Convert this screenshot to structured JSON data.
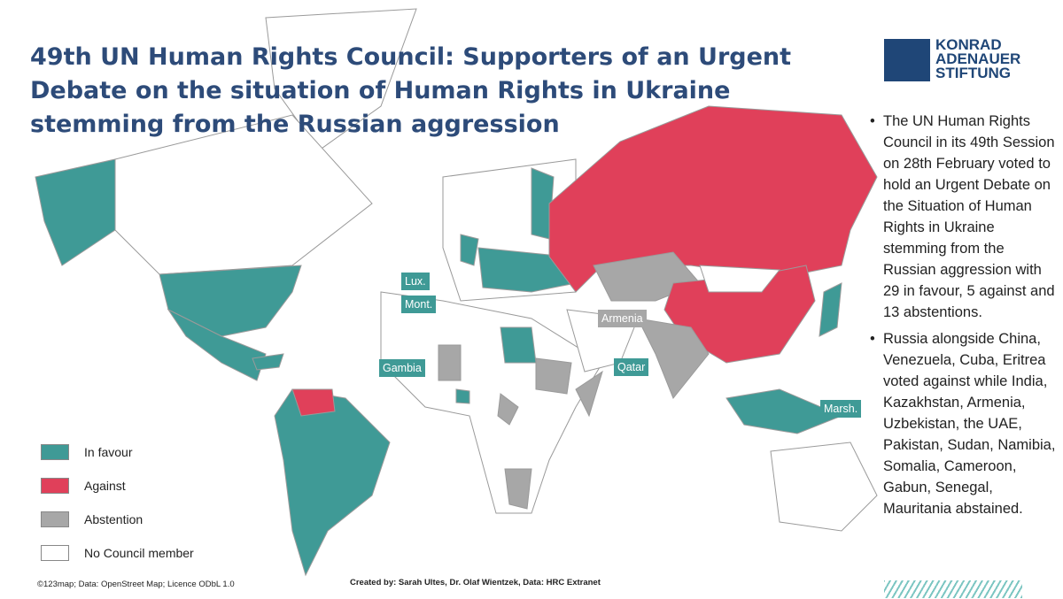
{
  "header": {
    "title": "49th UN Human Rights Council: Supporters of an Urgent Debate on the situation of Human Rights in Ukraine stemming from the Russian aggression",
    "logo": [
      "KONRAD",
      "ADENAUER",
      "STIFTUNG"
    ]
  },
  "bullets": [
    "The UN Human Rights Council in its 49th Session on 28th February voted to hold an Urgent Debate on the Situation of Human Rights in Ukraine stemming from the Russian aggression with 29 in favour, 5 against and 13 abstentions.",
    "Russia alongside China, Venezuela, Cuba, Eritrea voted against while India, Kazakhstan, Armenia, Uzbekistan, the UAE, Pakistan, Sudan, Namibia, Somalia, Cameroon, Gabun, Senegal, Mauritania abstained."
  ],
  "legend": [
    {
      "label": "In favour",
      "color": "#3f9a96"
    },
    {
      "label": "Against",
      "color": "#e0405a"
    },
    {
      "label": "Abstention",
      "color": "#a7a7a7"
    },
    {
      "label": "No Council member",
      "color": "#ffffff"
    }
  ],
  "map_labels": [
    "Lux.",
    "Mont.",
    "Armenia",
    "Gambia",
    "Qatar",
    "Marsh."
  ],
  "footer": {
    "source": "©123map; Data: OpenStreet Map; Licence ODbL 1.0",
    "credits": "Created by: Sarah Ultes, Dr. Olaf Wientzek, Data: HRC Extranet"
  }
}
